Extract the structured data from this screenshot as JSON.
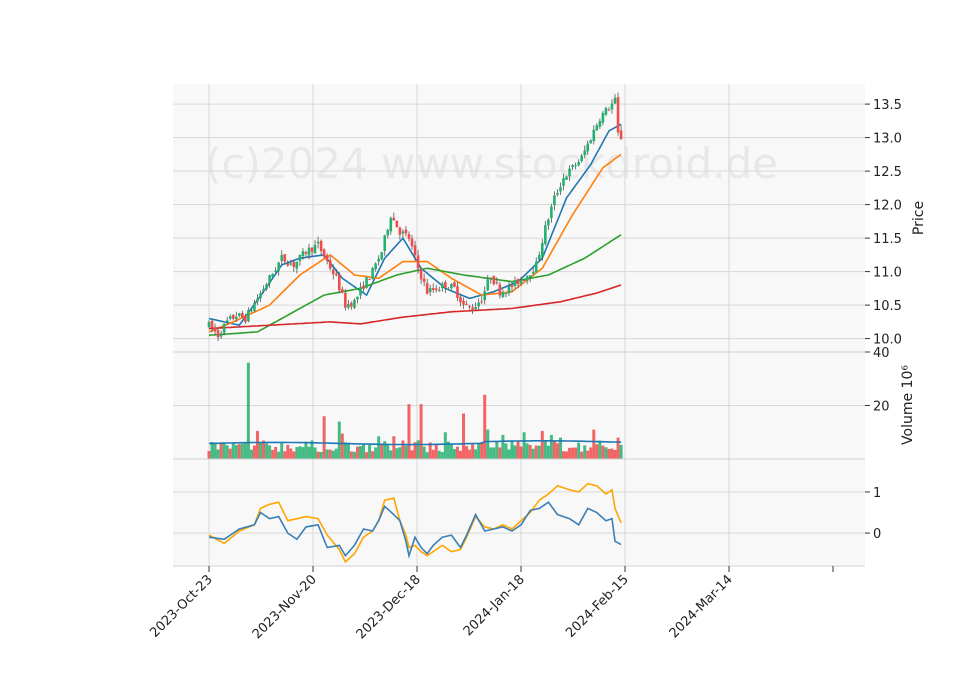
{
  "chart_data": {
    "type": "candlestick",
    "watermark": "(c)2024 www.stockdroid.de",
    "colors": {
      "up": "#26b06f",
      "down": "#f14b4b",
      "sma_fast": "#1f77b4",
      "sma_mid": "#ff7f0e",
      "sma_slow": "#2ca02c",
      "sma_long": "#d62728",
      "volume_ma": "#1f77b4",
      "macd": "#3a7fb5",
      "signal": "#ffa500",
      "grid": "#d9d9d9",
      "panel_bg": "#f8f8f8"
    },
    "x_ticks": [
      "2023-Oct-23",
      "2023-Nov-20",
      "2023-Dec-18",
      "2024-Jan-18",
      "2024-Feb-15",
      "2024-Mar-14"
    ],
    "price_panel": {
      "ylabel": "Price",
      "ylim": [
        9.8,
        13.8
      ],
      "yticks": [
        "10.0",
        "10.5",
        "11.0",
        "11.5",
        "12.0",
        "12.5",
        "13.0",
        "13.5"
      ],
      "anchors": [
        [
          0,
          10.2
        ],
        [
          3,
          10.05
        ],
        [
          6,
          10.25
        ],
        [
          9,
          10.35
        ],
        [
          12,
          10.3
        ],
        [
          16,
          10.6
        ],
        [
          20,
          10.9
        ],
        [
          24,
          11.2
        ],
        [
          28,
          11.1
        ],
        [
          32,
          11.3
        ],
        [
          36,
          11.4
        ],
        [
          39,
          11.15
        ],
        [
          42,
          10.9
        ],
        [
          45,
          10.5
        ],
        [
          48,
          10.55
        ],
        [
          51,
          10.8
        ],
        [
          54,
          11.0
        ],
        [
          57,
          11.3
        ],
        [
          60,
          11.85
        ],
        [
          63,
          11.6
        ],
        [
          66,
          11.5
        ],
        [
          69,
          11.05
        ],
        [
          72,
          10.7
        ],
        [
          75,
          10.75
        ],
        [
          78,
          10.8
        ],
        [
          81,
          10.75
        ],
        [
          84,
          10.5
        ],
        [
          87,
          10.45
        ],
        [
          90,
          10.6
        ],
        [
          93,
          10.95
        ],
        [
          96,
          10.7
        ],
        [
          99,
          10.75
        ],
        [
          102,
          10.85
        ],
        [
          105,
          10.95
        ],
        [
          108,
          11.1
        ],
        [
          111,
          11.65
        ],
        [
          114,
          12.1
        ],
        [
          117,
          12.4
        ],
        [
          120,
          12.55
        ],
        [
          123,
          12.7
        ],
        [
          126,
          13.0
        ],
        [
          129,
          13.3
        ],
        [
          132,
          13.45
        ],
        [
          134,
          13.55
        ],
        [
          135,
          13.05
        ],
        [
          136,
          13.0
        ]
      ],
      "sma_fast": [
        [
          0,
          10.3
        ],
        [
          10,
          10.2
        ],
        [
          18,
          10.7
        ],
        [
          24,
          11.1
        ],
        [
          30,
          11.2
        ],
        [
          38,
          11.25
        ],
        [
          44,
          10.9
        ],
        [
          52,
          10.65
        ],
        [
          58,
          11.2
        ],
        [
          64,
          11.5
        ],
        [
          70,
          11.05
        ],
        [
          78,
          10.75
        ],
        [
          86,
          10.6
        ],
        [
          94,
          10.7
        ],
        [
          102,
          10.85
        ],
        [
          110,
          11.2
        ],
        [
          118,
          12.1
        ],
        [
          126,
          12.6
        ],
        [
          132,
          13.1
        ],
        [
          136,
          13.2
        ]
      ],
      "sma_mid": [
        [
          0,
          10.1
        ],
        [
          8,
          10.25
        ],
        [
          20,
          10.5
        ],
        [
          30,
          10.95
        ],
        [
          40,
          11.25
        ],
        [
          48,
          10.95
        ],
        [
          56,
          10.9
        ],
        [
          64,
          11.15
        ],
        [
          72,
          11.15
        ],
        [
          80,
          10.9
        ],
        [
          90,
          10.65
        ],
        [
          100,
          10.7
        ],
        [
          110,
          11.05
        ],
        [
          120,
          11.85
        ],
        [
          130,
          12.55
        ],
        [
          136,
          12.75
        ]
      ],
      "sma_slow": [
        [
          0,
          10.05
        ],
        [
          16,
          10.1
        ],
        [
          28,
          10.4
        ],
        [
          38,
          10.65
        ],
        [
          50,
          10.75
        ],
        [
          62,
          10.95
        ],
        [
          72,
          11.05
        ],
        [
          84,
          10.95
        ],
        [
          100,
          10.85
        ],
        [
          112,
          10.95
        ],
        [
          124,
          11.2
        ],
        [
          136,
          11.55
        ]
      ],
      "sma_long": [
        [
          0,
          10.15
        ],
        [
          20,
          10.2
        ],
        [
          40,
          10.25
        ],
        [
          50,
          10.22
        ],
        [
          64,
          10.32
        ],
        [
          80,
          10.4
        ],
        [
          100,
          10.45
        ],
        [
          116,
          10.55
        ],
        [
          128,
          10.68
        ],
        [
          136,
          10.8
        ]
      ]
    },
    "volume_panel": {
      "ylabel": "Volume 10⁶",
      "ylim": [
        0,
        40
      ],
      "yticks": [
        "20",
        "40"
      ],
      "ma_level": 5.8,
      "spikes": [
        [
          13,
          36
        ],
        [
          16,
          10.5
        ],
        [
          38,
          16
        ],
        [
          43,
          14
        ],
        [
          44,
          9.5
        ],
        [
          56,
          8.5
        ],
        [
          61,
          8.5
        ],
        [
          66,
          20.5
        ],
        [
          70,
          20.5
        ],
        [
          78,
          10
        ],
        [
          84,
          17
        ],
        [
          91,
          24
        ],
        [
          92,
          11
        ],
        [
          97,
          9
        ],
        [
          104,
          10
        ],
        [
          110,
          10.5
        ],
        [
          113,
          9
        ],
        [
          116,
          8
        ],
        [
          127,
          11
        ],
        [
          135,
          8
        ]
      ]
    },
    "macd_panel": {
      "ylim": [
        -0.8,
        1.8
      ],
      "yticks": [
        "0",
        "1"
      ],
      "macd": [
        [
          0,
          -0.1
        ],
        [
          5,
          -0.15
        ],
        [
          10,
          0.1
        ],
        [
          15,
          0.2
        ],
        [
          17,
          0.5
        ],
        [
          20,
          0.35
        ],
        [
          23,
          0.4
        ],
        [
          26,
          0.0
        ],
        [
          29,
          -0.15
        ],
        [
          32,
          0.15
        ],
        [
          36,
          0.2
        ],
        [
          39,
          -0.35
        ],
        [
          43,
          -0.3
        ],
        [
          45,
          -0.55
        ],
        [
          48,
          -0.3
        ],
        [
          51,
          0.1
        ],
        [
          54,
          0.05
        ],
        [
          56,
          0.3
        ],
        [
          58,
          0.65
        ],
        [
          61,
          0.45
        ],
        [
          63,
          0.3
        ],
        [
          65,
          -0.2
        ],
        [
          66,
          -0.55
        ],
        [
          68,
          -0.1
        ],
        [
          70,
          -0.35
        ],
        [
          72,
          -0.5
        ],
        [
          74,
          -0.3
        ],
        [
          77,
          -0.1
        ],
        [
          80,
          -0.05
        ],
        [
          83,
          -0.35
        ],
        [
          85,
          -0.05
        ],
        [
          88,
          0.45
        ],
        [
          91,
          0.05
        ],
        [
          94,
          0.1
        ],
        [
          97,
          0.15
        ],
        [
          100,
          0.05
        ],
        [
          103,
          0.2
        ],
        [
          106,
          0.55
        ],
        [
          109,
          0.6
        ],
        [
          112,
          0.75
        ],
        [
          115,
          0.45
        ],
        [
          119,
          0.35
        ],
        [
          122,
          0.2
        ],
        [
          125,
          0.6
        ],
        [
          128,
          0.5
        ],
        [
          131,
          0.3
        ],
        [
          133,
          0.35
        ],
        [
          134,
          -0.2
        ],
        [
          136,
          -0.28
        ]
      ],
      "signal": [
        [
          0,
          -0.05
        ],
        [
          5,
          -0.25
        ],
        [
          10,
          0.05
        ],
        [
          15,
          0.2
        ],
        [
          17,
          0.6
        ],
        [
          20,
          0.7
        ],
        [
          23,
          0.75
        ],
        [
          26,
          0.3
        ],
        [
          29,
          0.35
        ],
        [
          32,
          0.4
        ],
        [
          36,
          0.35
        ],
        [
          39,
          -0.05
        ],
        [
          43,
          -0.4
        ],
        [
          45,
          -0.7
        ],
        [
          48,
          -0.5
        ],
        [
          51,
          -0.1
        ],
        [
          54,
          0.05
        ],
        [
          56,
          0.3
        ],
        [
          58,
          0.8
        ],
        [
          61,
          0.85
        ],
        [
          63,
          0.3
        ],
        [
          65,
          -0.05
        ],
        [
          66,
          -0.35
        ],
        [
          68,
          -0.3
        ],
        [
          70,
          -0.45
        ],
        [
          72,
          -0.55
        ],
        [
          74,
          -0.45
        ],
        [
          77,
          -0.3
        ],
        [
          80,
          -0.45
        ],
        [
          83,
          -0.4
        ],
        [
          85,
          -0.1
        ],
        [
          88,
          0.4
        ],
        [
          91,
          0.15
        ],
        [
          94,
          0.1
        ],
        [
          97,
          0.2
        ],
        [
          100,
          0.1
        ],
        [
          103,
          0.3
        ],
        [
          106,
          0.5
        ],
        [
          109,
          0.8
        ],
        [
          112,
          0.95
        ],
        [
          115,
          1.15
        ],
        [
          119,
          1.05
        ],
        [
          122,
          1.0
        ],
        [
          125,
          1.2
        ],
        [
          128,
          1.15
        ],
        [
          131,
          0.95
        ],
        [
          133,
          1.05
        ],
        [
          134,
          0.6
        ],
        [
          136,
          0.25
        ]
      ]
    }
  }
}
